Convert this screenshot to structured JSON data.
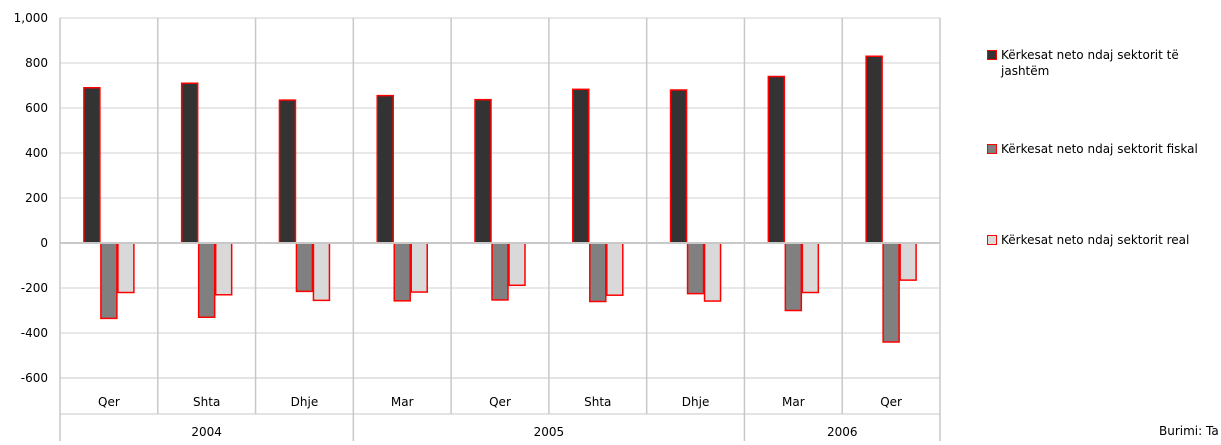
{
  "chart_data": {
    "type": "bar",
    "title": "",
    "xlabel": "",
    "ylabel": "",
    "ylim": [
      -600,
      1000
    ],
    "yticks": [
      1000,
      800,
      600,
      400,
      200,
      0,
      -200,
      -400,
      -600
    ],
    "ytick_labels": [
      "1,000",
      "800",
      "600",
      "400",
      "200",
      "0",
      "-200",
      "-400",
      "-600"
    ],
    "categories": [
      "Qer",
      "Shta",
      "Dhje",
      "Mar",
      "Qer",
      "Shta",
      "Dhje",
      "Mar",
      "Qer"
    ],
    "year_groups": [
      {
        "label": "2004",
        "count": 3
      },
      {
        "label": "2005",
        "count": 4
      },
      {
        "label": "2006",
        "count": 2
      }
    ],
    "series": [
      {
        "name": "Kërkesat neto ndaj sektorit të jashtëm",
        "color": "#333333",
        "values": [
          690,
          710,
          635,
          655,
          637,
          683,
          680,
          740,
          830
        ]
      },
      {
        "name": "Kërkesat neto ndaj sektorit fiskal",
        "color": "#808080",
        "values": [
          -335,
          -330,
          -215,
          -257,
          -253,
          -260,
          -225,
          -300,
          -440
        ]
      },
      {
        "name": "Kërkesat neto ndaj sektorit real",
        "color": "#d9d9d9",
        "values": [
          -220,
          -230,
          -255,
          -218,
          -188,
          -232,
          -258,
          -220,
          -165
        ]
      }
    ],
    "border_color": "#ff0000",
    "grid": true,
    "legend_position": "right"
  },
  "source_note": "Burimi: Ta"
}
